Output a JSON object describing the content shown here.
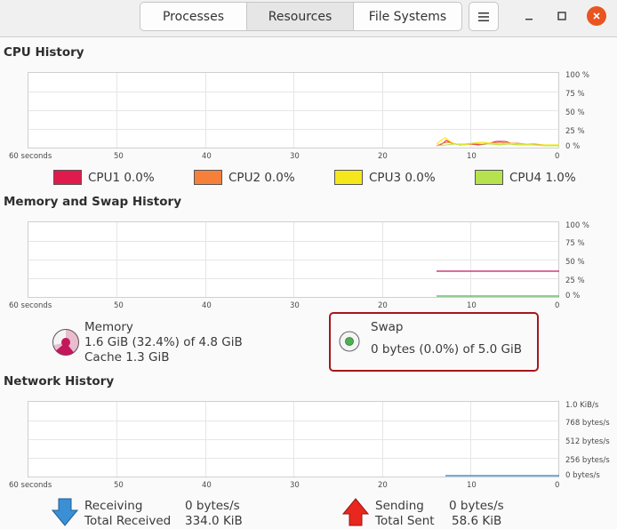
{
  "tabs": [
    {
      "label": "Processes"
    },
    {
      "label": "Resources"
    },
    {
      "label": "File Systems"
    }
  ],
  "cpu": {
    "title": "CPU History",
    "y_ticks": [
      "100 %",
      "75 %",
      "50 %",
      "25 %",
      "0 %"
    ],
    "x_ticks": [
      "60 seconds",
      "50",
      "40",
      "30",
      "20",
      "10",
      "0"
    ],
    "legend": [
      {
        "label": "CPU1",
        "value": "0.0%",
        "color": "#e01b4c"
      },
      {
        "label": "CPU2",
        "value": "0.0%",
        "color": "#f6803a"
      },
      {
        "label": "CPU3",
        "value": "0.0%",
        "color": "#f6e71d"
      },
      {
        "label": "CPU4",
        "value": "1.0%",
        "color": "#b6e34d"
      }
    ]
  },
  "memory": {
    "title": "Memory and Swap History",
    "y_ticks": [
      "100 %",
      "75 %",
      "50 %",
      "25 %",
      "0 %"
    ],
    "x_ticks": [
      "60 seconds",
      "50",
      "40",
      "30",
      "20",
      "10",
      "0"
    ],
    "mem_label": "Memory",
    "mem_value": "1.6 GiB (32.4%) of 4.8 GiB",
    "mem_cache": "Cache 1.3 GiB",
    "mem_color": "#c2185b",
    "swap_label": "Swap",
    "swap_value": "0 bytes (0.0%) of 5.0 GiB",
    "swap_color": "#4caf50"
  },
  "network": {
    "title": "Network History",
    "y_ticks": [
      "1.0 KiB/s",
      "768 bytes/s",
      "512 bytes/s",
      "256 bytes/s",
      "0 bytes/s"
    ],
    "x_ticks": [
      "60 seconds",
      "50",
      "40",
      "30",
      "20",
      "10",
      "0"
    ],
    "receiving_label": "Receiving",
    "receiving_value": "0 bytes/s",
    "total_received_label": "Total Received",
    "total_received_value": "334.0 KiB",
    "sending_label": "Sending",
    "sending_value": "0 bytes/s",
    "total_sent_label": "Total Sent",
    "total_sent_value": "58.6 KiB",
    "receive_color": "#2a7fc1",
    "send_color": "#e02020"
  }
}
